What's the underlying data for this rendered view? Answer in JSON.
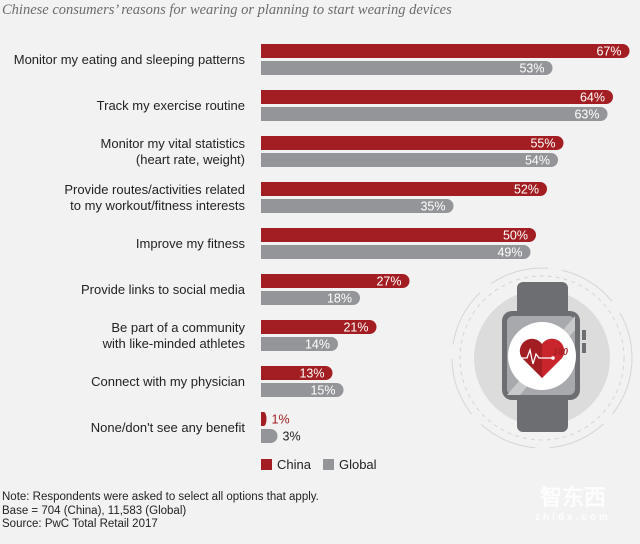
{
  "chart_data": {
    "type": "bar",
    "orientation": "horizontal",
    "title": "Chinese consumers’ reasons for wearing or planning to start wearing devices",
    "categories": [
      [
        "Monitor my eating and sleeping patterns"
      ],
      [
        "Track my exercise routine"
      ],
      [
        "Monitor my vital statistics",
        "(heart rate, weight)"
      ],
      [
        "Provide routes/activities related",
        "to my workout/fitness interests"
      ],
      [
        "Improve my fitness"
      ],
      [
        "Provide links to social media"
      ],
      [
        "Be part of a community",
        "with like-minded athletes"
      ],
      [
        "Connect with my physician"
      ],
      [
        "None/don't see any benefit"
      ]
    ],
    "series": [
      {
        "name": "China",
        "color": "#a21e22",
        "values": [
          67,
          64,
          55,
          52,
          50,
          27,
          21,
          13,
          1
        ]
      },
      {
        "name": "Global",
        "color": "#939598",
        "values": [
          53,
          63,
          54,
          35,
          49,
          18,
          14,
          15,
          3
        ]
      }
    ],
    "value_suffix": "%",
    "xlim": [
      0,
      100
    ],
    "grid": false,
    "legend": "bottom"
  },
  "notes": [
    "Note: Respondents were asked to select all options that apply.",
    "Base = 704 (China), 11,583 (Global)",
    "Source: PwC Total Retail 2017"
  ],
  "watch": {
    "heart_rate": "180"
  },
  "watermark": {
    "logo": "智东西",
    "domain": "zhidx.com"
  }
}
